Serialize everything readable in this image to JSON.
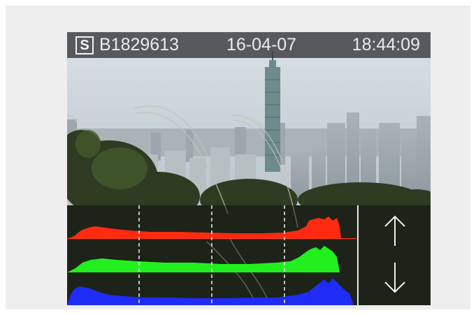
{
  "status_bar": {
    "mode": "S",
    "image_id": "B1829613",
    "date": "16-04-07",
    "time": "18:44:09"
  },
  "photo": {
    "description_icon": "city-skyline-photo"
  },
  "histogram": {
    "channels": [
      "red",
      "green",
      "blue"
    ],
    "colors": {
      "red": "#ff2a10",
      "green": "#22f01e",
      "blue": "#1e2cf5"
    }
  },
  "controls": {
    "up_icon": "arrow-up-icon",
    "down_icon": "arrow-down-icon"
  }
}
